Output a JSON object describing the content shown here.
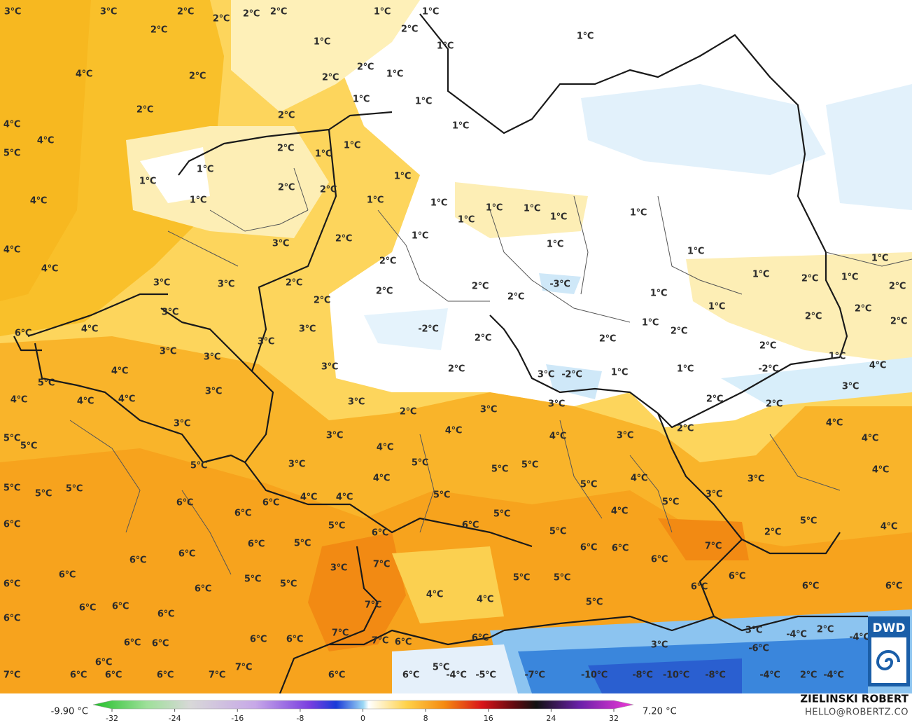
{
  "map": {
    "labels": [
      "3°C",
      "3°C",
      "2°C",
      "2°C",
      "2°C",
      "2°C",
      "1°C",
      "1°C",
      "2°C",
      "2°C",
      "1°C",
      "1°C",
      "1°C",
      "4°C",
      "2°C",
      "2°C",
      "1°C",
      "2°C",
      "1°C",
      "2°C",
      "1°C",
      "2°C",
      "1°C",
      "4°C",
      "4°C",
      "5°C",
      "2°C",
      "1°C",
      "1°C",
      "1°C",
      "1°C",
      "1°C",
      "2°C",
      "2°C",
      "4°C",
      "1°C",
      "1°C",
      "1°C",
      "1°C",
      "1°C",
      "1°C",
      "1°C",
      "1°C",
      "2°C",
      "1°C",
      "3°C",
      "1°C",
      "1°C",
      "4°C",
      "4°C",
      "2°C",
      "1°C",
      "1°C",
      "2°C",
      "1°C",
      "2°C",
      "3°C",
      "3°C",
      "2°C",
      "2°C",
      "-3°C",
      "2°C",
      "1°C",
      "2°C",
      "2°C",
      "1°C",
      "2°C",
      "2°C",
      "2°C",
      "3°C",
      "6°C",
      "4°C",
      "3°C",
      "-2°C",
      "1°C",
      "2°C",
      "2°C",
      "2°C",
      "3°C",
      "3°C",
      "3°C",
      "2°C",
      "1°C",
      "4°C",
      "4°C",
      "3°C",
      "2°C",
      "3°C",
      "-2°C",
      "1°C",
      "1°C",
      "-2°C",
      "5°C",
      "4°C",
      "4°C",
      "4°C",
      "3°C",
      "3°C",
      "3°C",
      "2°C",
      "2°C",
      "3°C",
      "3°C",
      "2°C",
      "3°C",
      "2°C",
      "4°C",
      "5°C",
      "5°C",
      "3°C",
      "4°C",
      "4°C",
      "3°C",
      "4°C",
      "4°C",
      "5°C",
      "5°C",
      "5°C",
      "3°C",
      "5°C",
      "4°C",
      "5°C",
      "5°C",
      "5°C",
      "4°C",
      "3°C",
      "5°C",
      "4°C",
      "5°C",
      "4°C",
      "4°C",
      "3°C",
      "6°C",
      "6°C",
      "5°C",
      "6°C",
      "5°C",
      "4°C",
      "5°C",
      "4°C",
      "6°C",
      "5°C",
      "6°C",
      "5°C",
      "2°C",
      "6°C",
      "6°C",
      "5°C",
      "7°C",
      "6°C",
      "6°C",
      "6°C",
      "6°C",
      "3°C",
      "7°C",
      "6°C",
      "6°C",
      "5°C",
      "5°C",
      "5°C",
      "5°C",
      "6°C",
      "6°C",
      "6°C",
      "6°C",
      "6°C",
      "6°C",
      "4°C",
      "4°C",
      "5°C",
      "6°C",
      "6°C",
      "7°C",
      "6°C",
      "6°C",
      "7°C",
      "6°C",
      "6°C",
      "6°C",
      "6°C",
      "6°C",
      "3°C",
      "3°C",
      "-4°C",
      "2°C",
      "-4°C",
      "7°C",
      "6°C",
      "-6°C",
      "5°C",
      "-4°C",
      "-5°C",
      "6°C",
      "7°C",
      "7°C",
      "6°C",
      "6°C",
      "6°C",
      "7°C",
      "6°C",
      "6°C",
      "-7°C",
      "-10°C",
      "-8°C",
      "-10°C",
      "-8°C",
      "-4°C",
      "2°C",
      "-4°C"
    ]
  },
  "legend": {
    "min_label": "-9.90 °C",
    "max_label": "7.20 °C",
    "ticks": [
      -32,
      -24,
      -16,
      -8,
      0,
      8,
      16,
      24,
      32
    ]
  },
  "credit": {
    "name": "ZIELINSKI ROBERT",
    "email": "HELLO@ROBERTZ.CO"
  },
  "logo": {
    "text": "DWD"
  }
}
